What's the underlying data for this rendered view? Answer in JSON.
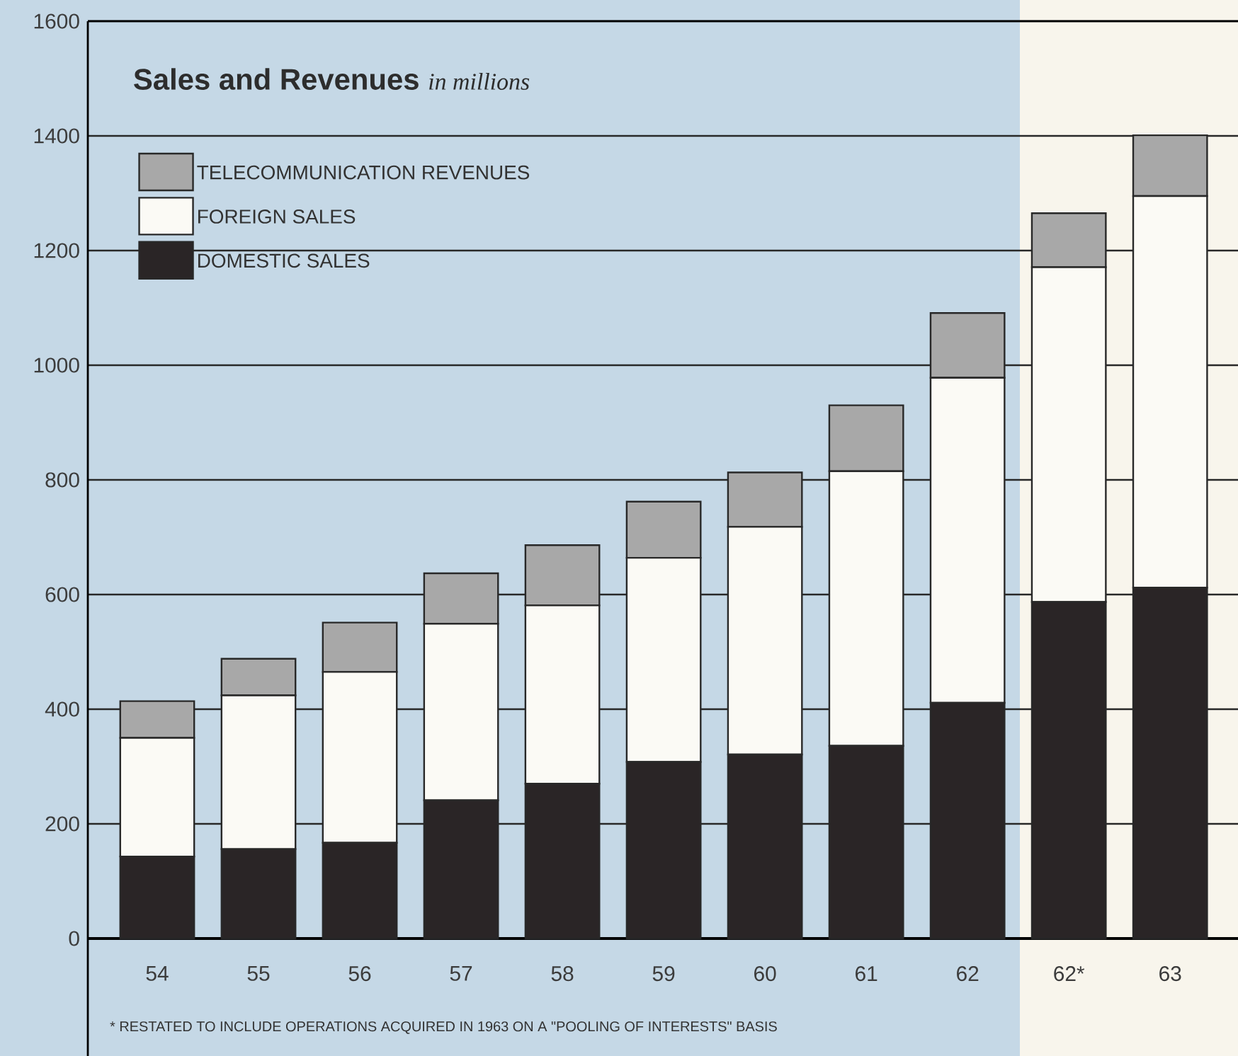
{
  "chart_data": {
    "type": "bar",
    "stacked": true,
    "title": "Sales and Revenues",
    "subtitle": "in millions",
    "categories": [
      "54",
      "55",
      "56",
      "57",
      "58",
      "59",
      "60",
      "61",
      "62",
      "62*",
      "63"
    ],
    "series": [
      {
        "name": "DOMESTIC SALES",
        "color": "#2a2526",
        "values": [
          143,
          156,
          167,
          241,
          270,
          308,
          321,
          336,
          411,
          587,
          612
        ]
      },
      {
        "name": "FOREIGN SALES",
        "color": "#fbfaf5",
        "values": [
          207,
          268,
          298,
          308,
          311,
          356,
          397,
          479,
          567,
          584,
          683
        ]
      },
      {
        "name": "TELECOMMUNICATION REVENUES",
        "color": "#a8a8a8",
        "values": [
          64,
          64,
          86,
          88,
          105,
          98,
          95,
          115,
          113,
          94,
          106
        ]
      }
    ],
    "ylim": [
      0,
      1600
    ],
    "yticks": [
      0,
      200,
      400,
      600,
      800,
      1000,
      1200,
      1400,
      1600
    ],
    "grid": "y",
    "legend": "top left",
    "annotations": [
      "* RESTATED TO INCLUDE OPERATIONS ACQUIRED IN 1963 ON A \"POOLING OF INTERESTS\" BASIS"
    ]
  }
}
